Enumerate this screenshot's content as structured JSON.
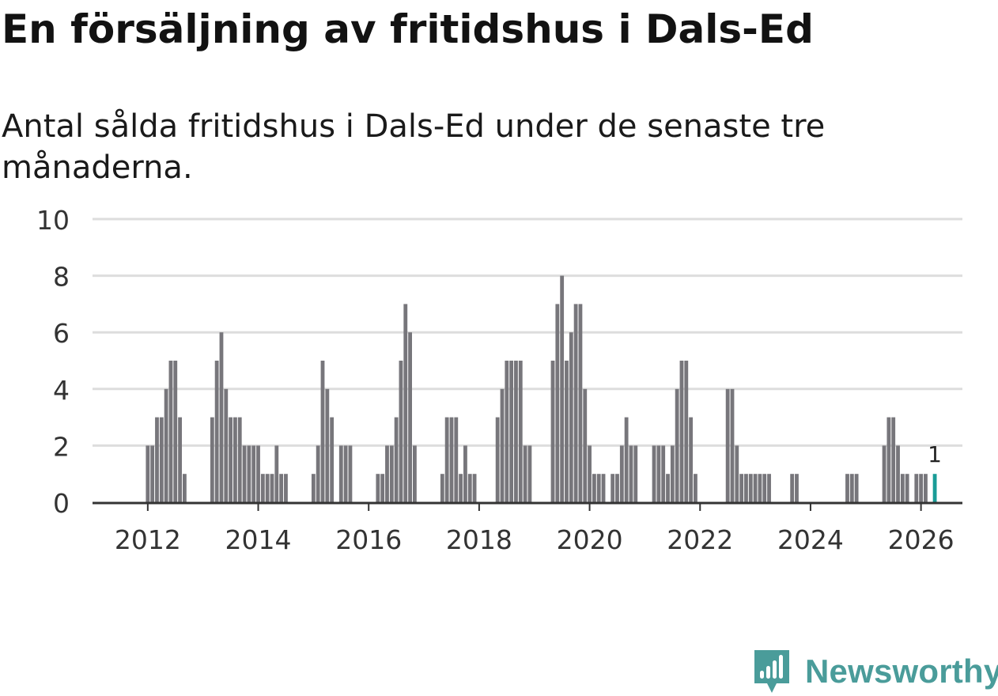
{
  "header": {
    "title": "En försäljning av fritidshus i Dals-Ed",
    "subtitle": "Antal sålda fritidshus i Dals-Ed under de senaste tre månaderna."
  },
  "brand": {
    "name": "Newsworthy"
  },
  "colors": {
    "bar": "#77767b",
    "highlight": "#1a9c97",
    "grid": "#dddddd",
    "axis": "#333333",
    "brand": "#4a9c9a"
  },
  "chart_data": {
    "type": "bar",
    "title": "",
    "xlabel": "",
    "ylabel": "",
    "ylim": [
      0,
      10
    ],
    "yticks": [
      0,
      2,
      4,
      6,
      8,
      10
    ],
    "xlim": [
      "2011-01",
      "2026-10"
    ],
    "xtick_labels": [
      "2012",
      "2014",
      "2016",
      "2018",
      "2020",
      "2022",
      "2024",
      "2026"
    ],
    "grid": true,
    "series": [
      {
        "values": [
          [
            "2012-01",
            2
          ],
          [
            "2012-02",
            2
          ],
          [
            "2012-03",
            3
          ],
          [
            "2012-04",
            3
          ],
          [
            "2012-05",
            4
          ],
          [
            "2012-06",
            5
          ],
          [
            "2012-07",
            5
          ],
          [
            "2012-08",
            3
          ],
          [
            "2012-09",
            1
          ],
          [
            "2013-03",
            3
          ],
          [
            "2013-04",
            5
          ],
          [
            "2013-05",
            6
          ],
          [
            "2013-06",
            4
          ],
          [
            "2013-07",
            3
          ],
          [
            "2013-08",
            3
          ],
          [
            "2013-09",
            3
          ],
          [
            "2013-10",
            2
          ],
          [
            "2013-11",
            2
          ],
          [
            "2013-12",
            2
          ],
          [
            "2014-01",
            2
          ],
          [
            "2014-02",
            1
          ],
          [
            "2014-03",
            1
          ],
          [
            "2014-04",
            1
          ],
          [
            "2014-05",
            2
          ],
          [
            "2014-06",
            1
          ],
          [
            "2014-07",
            1
          ],
          [
            "2015-01",
            1
          ],
          [
            "2015-02",
            2
          ],
          [
            "2015-03",
            5
          ],
          [
            "2015-04",
            4
          ],
          [
            "2015-05",
            3
          ],
          [
            "2015-07",
            2
          ],
          [
            "2015-08",
            2
          ],
          [
            "2015-09",
            2
          ],
          [
            "2016-03",
            1
          ],
          [
            "2016-04",
            1
          ],
          [
            "2016-05",
            2
          ],
          [
            "2016-06",
            2
          ],
          [
            "2016-07",
            3
          ],
          [
            "2016-08",
            5
          ],
          [
            "2016-09",
            7
          ],
          [
            "2016-10",
            6
          ],
          [
            "2016-11",
            2
          ],
          [
            "2017-05",
            1
          ],
          [
            "2017-06",
            3
          ],
          [
            "2017-07",
            3
          ],
          [
            "2017-08",
            3
          ],
          [
            "2017-09",
            1
          ],
          [
            "2017-10",
            2
          ],
          [
            "2017-11",
            1
          ],
          [
            "2017-12",
            1
          ],
          [
            "2018-05",
            3
          ],
          [
            "2018-06",
            4
          ],
          [
            "2018-07",
            5
          ],
          [
            "2018-08",
            5
          ],
          [
            "2018-09",
            5
          ],
          [
            "2018-10",
            5
          ],
          [
            "2018-11",
            2
          ],
          [
            "2018-12",
            2
          ],
          [
            "2019-05",
            5
          ],
          [
            "2019-06",
            7
          ],
          [
            "2019-07",
            8
          ],
          [
            "2019-08",
            5
          ],
          [
            "2019-09",
            6
          ],
          [
            "2019-10",
            7
          ],
          [
            "2019-11",
            7
          ],
          [
            "2019-12",
            4
          ],
          [
            "2020-01",
            2
          ],
          [
            "2020-02",
            1
          ],
          [
            "2020-03",
            1
          ],
          [
            "2020-04",
            1
          ],
          [
            "2020-06",
            1
          ],
          [
            "2020-07",
            1
          ],
          [
            "2020-08",
            2
          ],
          [
            "2020-09",
            3
          ],
          [
            "2020-10",
            2
          ],
          [
            "2020-11",
            2
          ],
          [
            "2021-03",
            2
          ],
          [
            "2021-04",
            2
          ],
          [
            "2021-05",
            2
          ],
          [
            "2021-06",
            1
          ],
          [
            "2021-07",
            2
          ],
          [
            "2021-08",
            4
          ],
          [
            "2021-09",
            5
          ],
          [
            "2021-10",
            5
          ],
          [
            "2021-11",
            3
          ],
          [
            "2021-12",
            1
          ],
          [
            "2022-07",
            4
          ],
          [
            "2022-08",
            4
          ],
          [
            "2022-09",
            2
          ],
          [
            "2022-10",
            1
          ],
          [
            "2022-11",
            1
          ],
          [
            "2022-12",
            1
          ],
          [
            "2023-01",
            1
          ],
          [
            "2023-02",
            1
          ],
          [
            "2023-03",
            1
          ],
          [
            "2023-04",
            1
          ],
          [
            "2023-09",
            1
          ],
          [
            "2023-10",
            1
          ],
          [
            "2024-09",
            1
          ],
          [
            "2024-10",
            1
          ],
          [
            "2024-11",
            1
          ],
          [
            "2025-05",
            2
          ],
          [
            "2025-06",
            3
          ],
          [
            "2025-07",
            3
          ],
          [
            "2025-08",
            2
          ],
          [
            "2025-09",
            1
          ],
          [
            "2025-10",
            1
          ],
          [
            "2025-12",
            1
          ],
          [
            "2026-01",
            1
          ],
          [
            "2026-02",
            1
          ]
        ]
      }
    ],
    "highlight": {
      "x": "2026-04",
      "value": 1,
      "label": "1"
    }
  }
}
